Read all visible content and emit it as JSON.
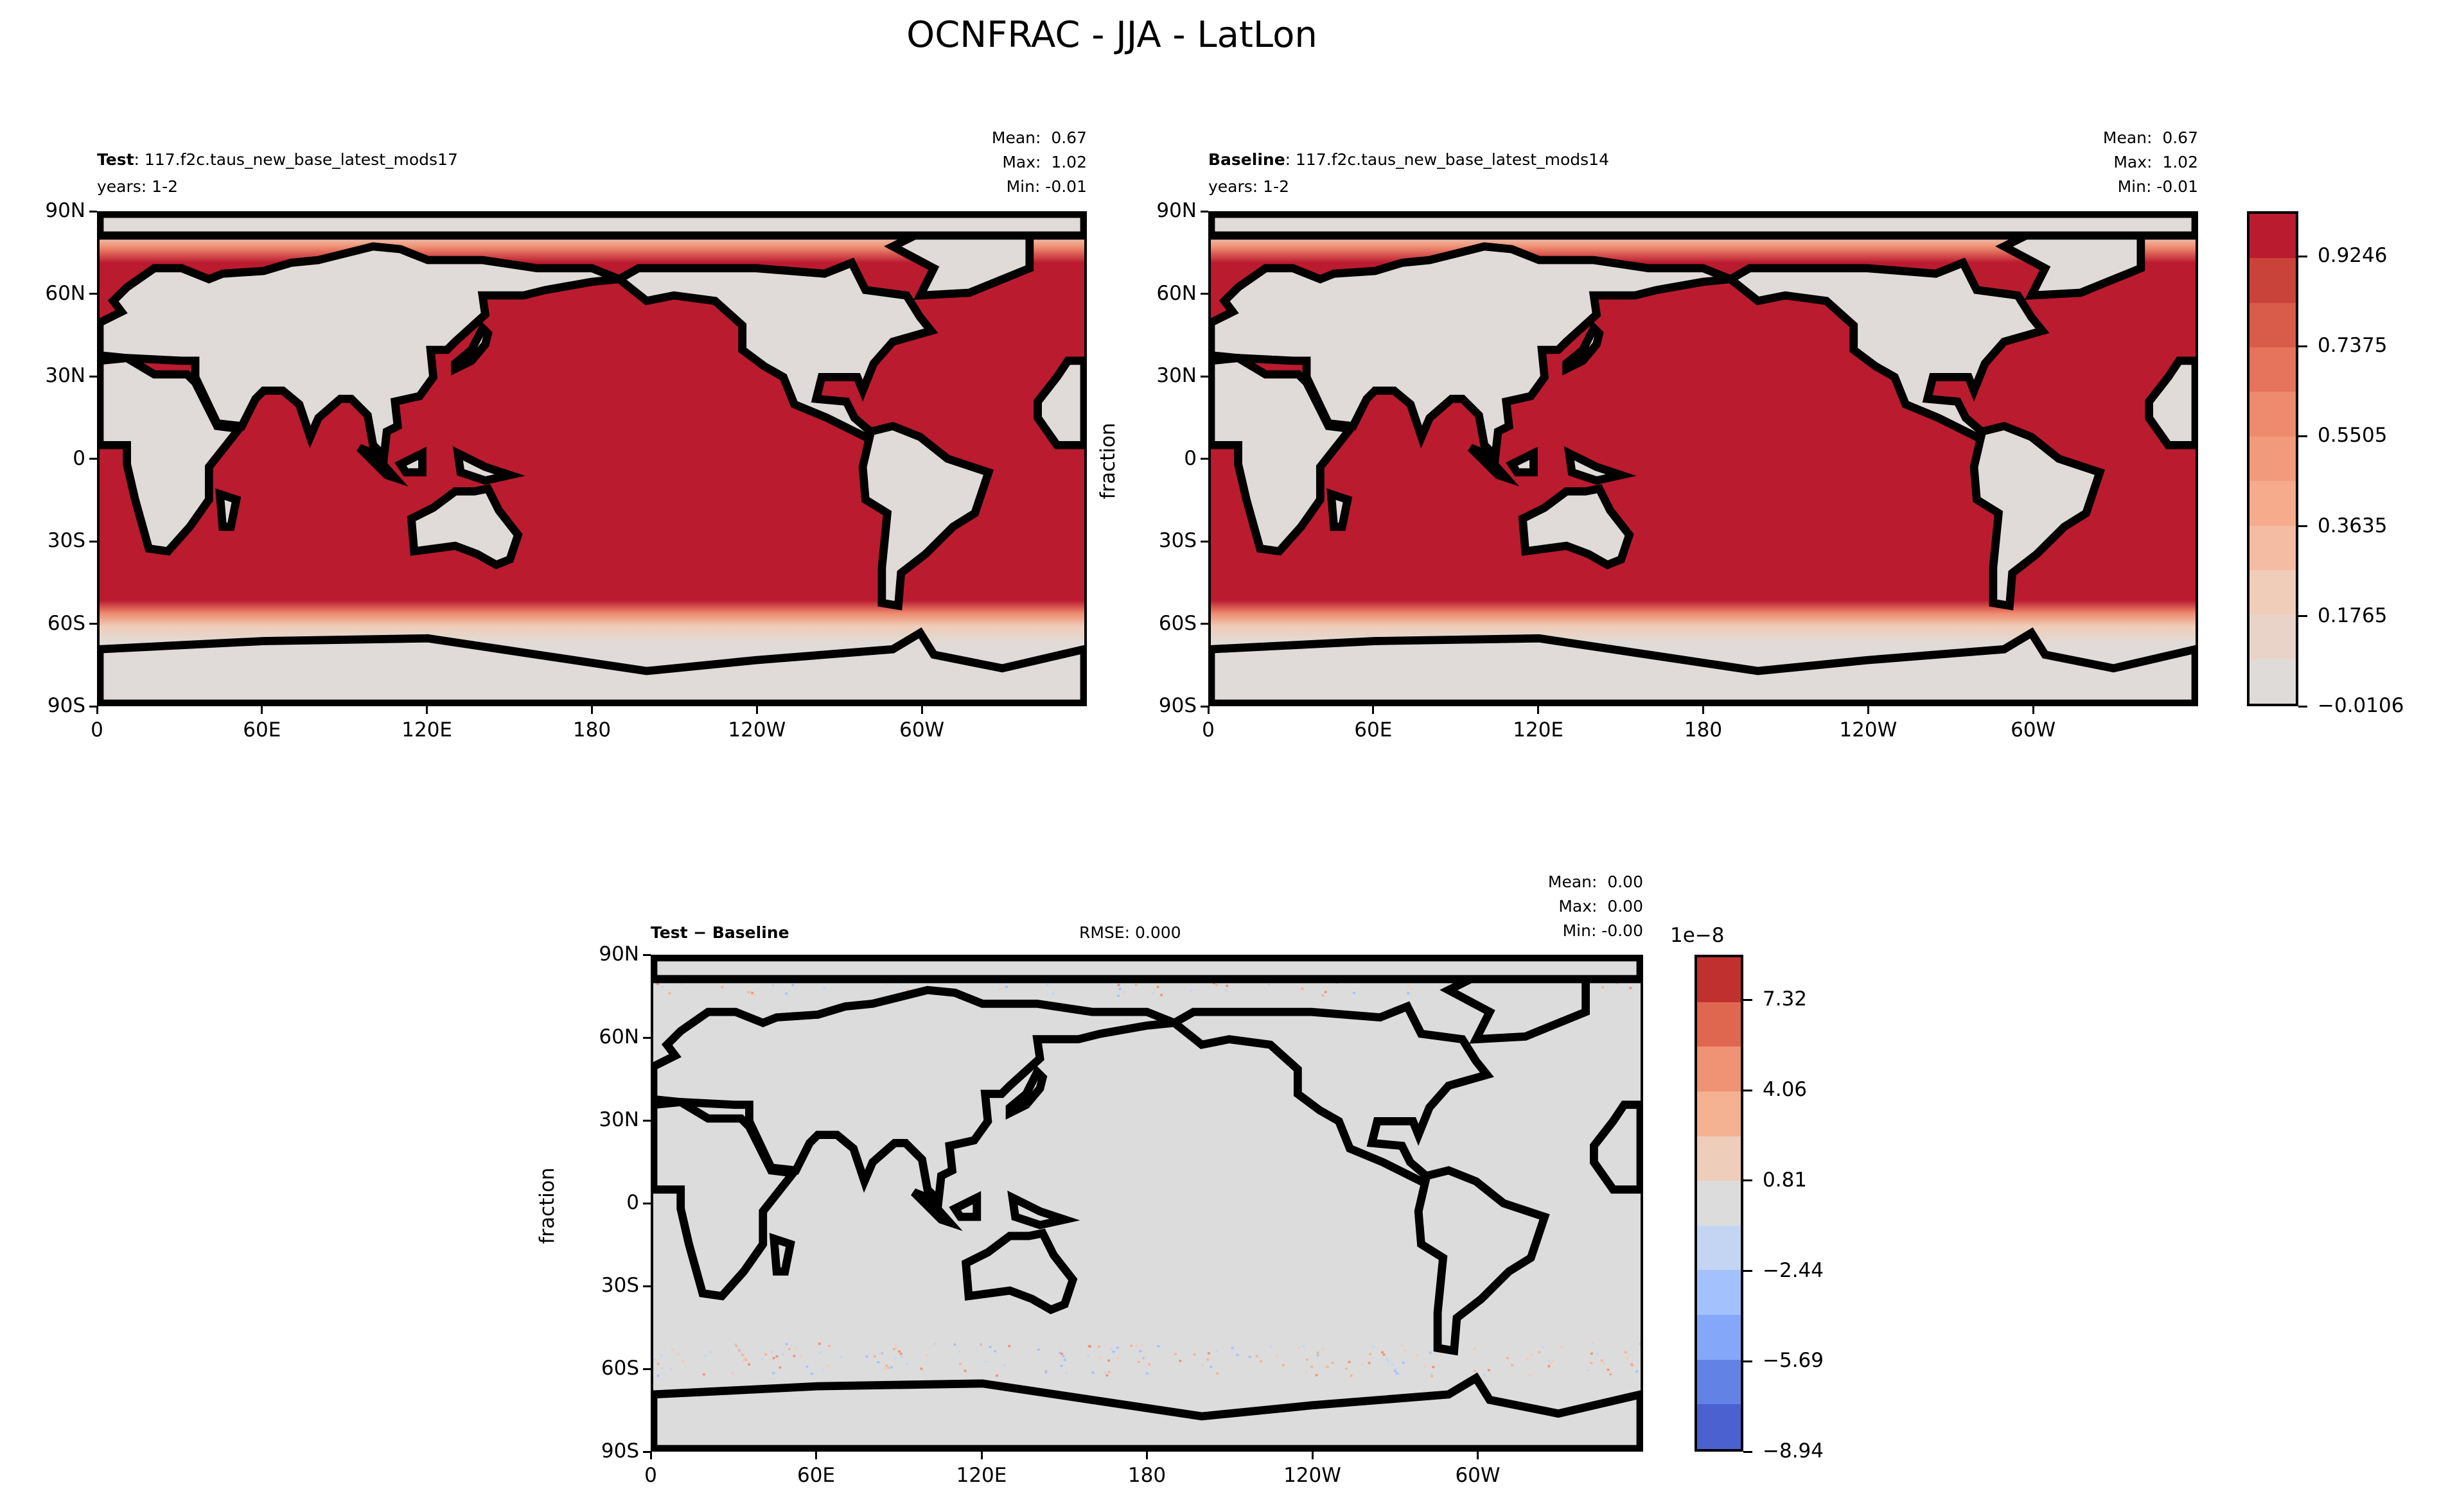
{
  "title": "OCNFRAC - JJA - LatLon",
  "colors": {
    "ocean": "#bb1b2f",
    "land": "#e0dbd8",
    "diff_bg": "#dcdcdc",
    "coast": "#000000"
  },
  "lat_ticks": [
    "90N",
    "60N",
    "30N",
    "0",
    "30S",
    "60S",
    "90S"
  ],
  "lon_ticks": [
    "0",
    "60E",
    "120E",
    "180",
    "120W",
    "60W"
  ],
  "chart_data": [
    {
      "type": "heatmap",
      "panel": "test",
      "label_bold": "Test",
      "label_rest": ": 117.f2c.taus_new_base_latest_mods17",
      "years": "years: 1-2",
      "stats": {
        "mean": "Mean:  0.67",
        "max": "Max:  1.02",
        "min": "Min: -0.01"
      },
      "xlim": [
        0,
        360
      ],
      "ylim": [
        -90,
        90
      ]
    },
    {
      "type": "heatmap",
      "panel": "baseline",
      "label_bold": "Baseline",
      "label_rest": ": 117.f2c.taus_new_base_latest_mods14",
      "years": "years: 1-2",
      "stats": {
        "mean": "Mean:  0.67",
        "max": "Max:  1.02",
        "min": "Min: -0.01"
      },
      "ylabel": "fraction",
      "xlim": [
        0,
        360
      ],
      "ylim": [
        -90,
        90
      ]
    },
    {
      "type": "heatmap",
      "panel": "difference",
      "label_bold": "Test − Baseline",
      "rmse": "RMSE: 0.000",
      "stats": {
        "mean": "Mean:  0.00",
        "max": "Max:  0.00",
        "min": "Min: -0.00"
      },
      "ylabel": "fraction",
      "xlim": [
        0,
        360
      ],
      "ylim": [
        -90,
        90
      ]
    }
  ],
  "colorbars": {
    "main": {
      "ticks": [
        "0.9246",
        "0.7375",
        "0.5505",
        "0.3635",
        "0.1765",
        "−0.0106"
      ],
      "colors": [
        "#bb1b2f",
        "#c9433b",
        "#d95b4a",
        "#e6735c",
        "#ee8a6d",
        "#f29a7c",
        "#f6ab8d",
        "#f5bca4",
        "#efcdb8",
        "#e9d3c8",
        "#dfdbd8"
      ]
    },
    "diff": {
      "offset": "1e−8",
      "ticks": [
        "7.32",
        "4.06",
        "0.81",
        "−2.44",
        "−5.69",
        "−8.94"
      ],
      "colors": [
        "#c0302f",
        "#e0674f",
        "#f09274",
        "#f5b293",
        "#efcdbb",
        "#dcdcdc",
        "#c3d5f2",
        "#a3c1fc",
        "#85a7f9",
        "#6283e5",
        "#4a61cf"
      ]
    }
  }
}
